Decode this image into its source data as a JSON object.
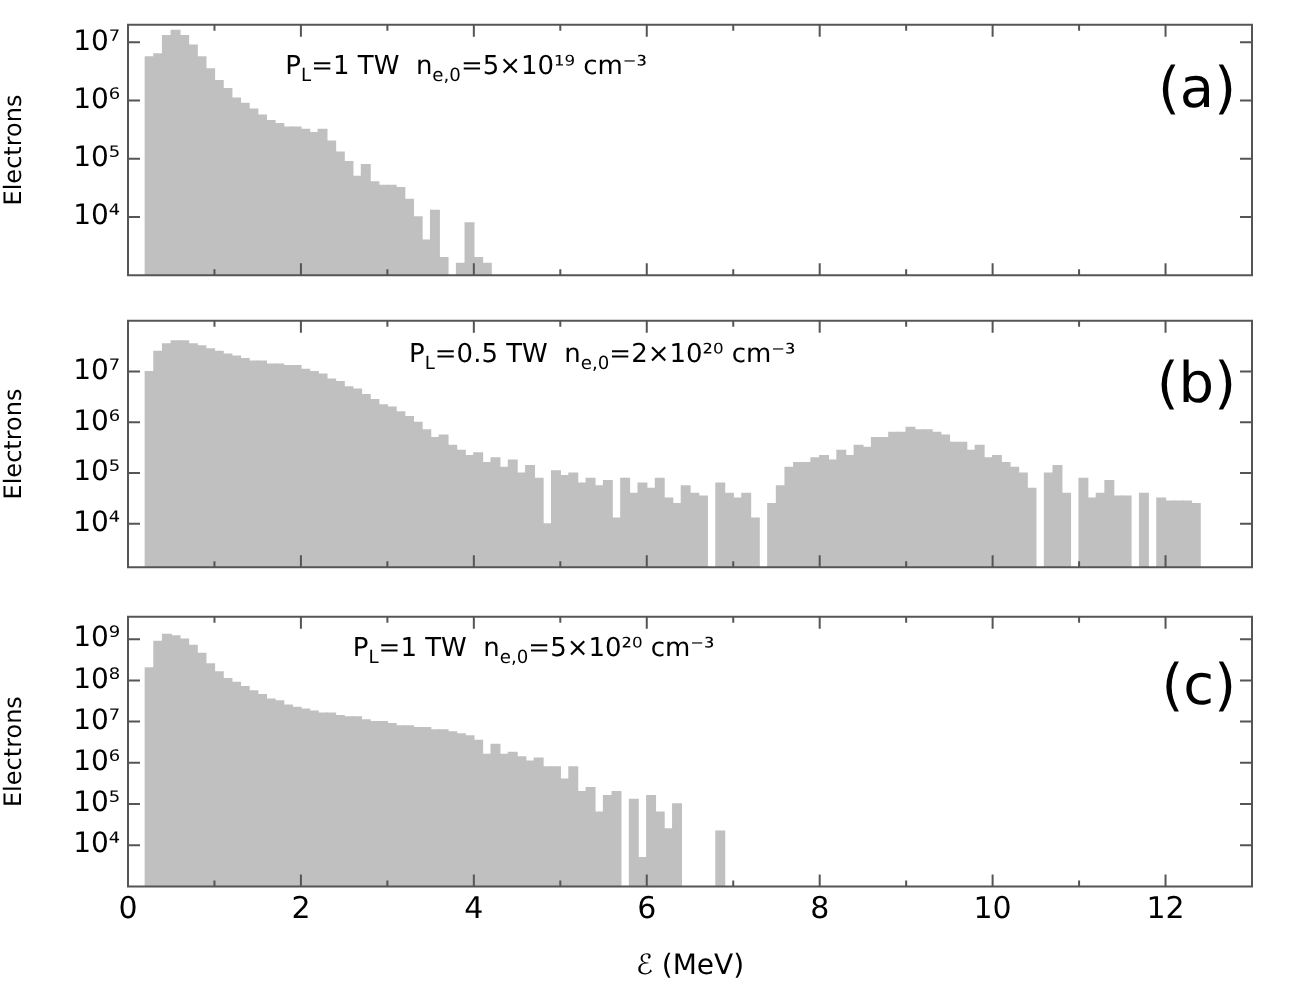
{
  "chart_data": [
    {
      "type": "histogram",
      "ylabel": "Electrons",
      "color": "#c0c0c0",
      "log": true,
      "tick_labels": "y",
      "annotations": [
        "P$_{L}$=1 TW  n$_{e,0}$=5×10¹⁹ cm⁻³",
        "(a)"
      ],
      "xlim": [
        0,
        13
      ],
      "xticks": [
        0,
        {
          "value": 1,
          "label": null
        },
        2,
        {
          "value": 3,
          "label": null
        },
        4,
        {
          "value": 5,
          "label": null
        },
        6,
        {
          "value": 7,
          "label": null
        },
        8,
        {
          "value": 9,
          "label": null
        },
        10,
        {
          "value": 11,
          "label": null
        },
        12
      ],
      "ylim": [
        1000,
        20000000
      ],
      "yticks": [
        {
          "value": 10000,
          "label": "10⁴"
        },
        {
          "value": 100000,
          "label": "10⁵"
        },
        {
          "value": 1000000,
          "label": "10⁶"
        },
        {
          "value": 10000000,
          "label": "10⁷"
        }
      ],
      "bins": [
        0.2,
        0.3,
        0.4,
        0.5,
        0.6,
        0.7,
        0.8,
        0.9,
        1.0,
        1.1,
        1.2,
        1.3,
        1.4,
        1.5,
        1.6,
        1.7,
        1.8,
        1.9,
        2.0,
        2.1,
        2.2,
        2.3,
        2.4,
        2.5,
        2.6,
        2.7,
        2.8,
        2.9,
        3.0,
        3.1,
        3.2,
        3.3,
        3.4,
        3.5,
        3.6,
        3.7,
        3.8,
        3.9,
        4.0,
        4.1,
        4.2
      ],
      "values": [
        5600000.0,
        6300000.0,
        13000000.0,
        16000000.0,
        13000000.0,
        8900000.0,
        5600000.0,
        3500000.0,
        2200000.0,
        1600000.0,
        1100000.0,
        890000.0,
        710000.0,
        560000.0,
        450000.0,
        400000.0,
        350000.0,
        350000.0,
        320000.0,
        280000.0,
        320000.0,
        200000.0,
        130000.0,
        89000.0,
        50000.0,
        79000.0,
        40000.0,
        35000.0,
        35000.0,
        32000.0,
        20000.0,
        10000.0,
        4000.0,
        13000.0,
        2000.0,
        null,
        1600.0,
        7900.0,
        2000.0,
        1600.0
      ]
    },
    {
      "type": "histogram",
      "ylabel": "Electrons",
      "color": "#c0c0c0",
      "log": true,
      "tick_labels": "y",
      "annotations": [
        "P$_{L}$=0.5 TW  n$_{e,0}$=2×10²⁰ cm⁻³",
        "(b)"
      ],
      "xlim": [
        0,
        13
      ],
      "xticks": [
        0,
        {
          "value": 1,
          "label": null
        },
        2,
        {
          "value": 3,
          "label": null
        },
        4,
        {
          "value": 5,
          "label": null
        },
        6,
        {
          "value": 7,
          "label": null
        },
        8,
        {
          "value": 9,
          "label": null
        },
        10,
        {
          "value": 11,
          "label": null
        },
        12
      ],
      "ylim": [
        1400,
        100000000
      ],
      "yticks": [
        {
          "value": 10000,
          "label": "10⁴"
        },
        {
          "value": 100000,
          "label": "10⁵"
        },
        {
          "value": 1000000,
          "label": "10⁶"
        },
        {
          "value": 10000000,
          "label": "10⁷"
        }
      ],
      "bins": [
        0.2,
        0.3,
        0.4,
        0.5,
        0.6,
        0.7,
        0.8,
        0.9,
        1.0,
        1.1,
        1.2,
        1.3,
        1.4,
        1.5,
        1.6,
        1.7,
        1.8,
        1.9,
        2.0,
        2.1,
        2.2,
        2.3,
        2.4,
        2.5,
        2.6,
        2.7,
        2.8,
        2.9,
        3.0,
        3.1,
        3.2,
        3.3,
        3.4,
        3.5,
        3.6,
        3.7,
        3.8,
        3.9,
        4.0,
        4.1,
        4.2,
        4.3,
        4.4,
        4.5,
        4.6,
        4.7,
        4.8,
        4.9,
        5.0,
        5.1,
        5.2,
        5.3,
        5.4,
        5.5,
        5.6,
        5.7,
        5.8,
        5.9,
        6.0,
        6.1,
        6.2,
        6.3,
        6.4,
        6.5,
        6.6,
        6.7,
        6.8,
        6.9,
        7.0,
        7.1,
        7.2,
        7.3,
        7.4,
        7.5,
        7.6,
        7.7,
        7.8,
        7.9,
        8.0,
        8.1,
        8.2,
        8.3,
        8.4,
        8.5,
        8.6,
        8.7,
        8.8,
        8.9,
        9.0,
        9.1,
        9.2,
        9.3,
        9.4,
        9.5,
        9.6,
        9.7,
        9.8,
        9.9,
        10.0,
        10.1,
        10.2,
        10.3,
        10.4,
        10.5,
        10.6,
        10.7,
        10.8,
        10.9,
        11.0,
        11.1,
        11.2,
        11.3,
        11.4,
        11.5,
        11.6,
        11.7,
        11.8,
        11.9,
        12.0,
        12.1,
        12.2,
        12.3,
        12.4
      ],
      "values": [
        10000000.0,
        25000000.0,
        35000000.0,
        40000000.0,
        40000000.0,
        35000000.0,
        32000000.0,
        28000000.0,
        25000000.0,
        22000000.0,
        20000000.0,
        18000000.0,
        16000000.0,
        16000000.0,
        14000000.0,
        14000000.0,
        13000000.0,
        13000000.0,
        11000000.0,
        10000000.0,
        8900000.0,
        7100000.0,
        6300000.0,
        5000000.0,
        4500000.0,
        3500000.0,
        2800000.0,
        2200000.0,
        2000000.0,
        1600000.0,
        1300000.0,
        1000000.0,
        710000.0,
        500000.0,
        560000.0,
        350000.0,
        280000.0,
        220000.0,
        250000.0,
        160000.0,
        200000.0,
        130000.0,
        180000.0,
        100000.0,
        140000.0,
        79000.0,
        10000.0,
        110000.0,
        89000.0,
        100000.0,
        63000.0,
        79000.0,
        56000.0,
        71000.0,
        13000.0,
        79000.0,
        40000.0,
        63000.0,
        50000.0,
        79000.0,
        32000.0,
        25000.0,
        56000.0,
        40000.0,
        35000.0,
        null,
        63000.0,
        40000.0,
        32000.0,
        40000.0,
        13000.0,
        null,
        25000.0,
        56000.0,
        130000.0,
        160000.0,
        160000.0,
        200000.0,
        220000.0,
        180000.0,
        280000.0,
        220000.0,
        350000.0,
        320000.0,
        500000.0,
        500000.0,
        630000.0,
        630000.0,
        790000.0,
        710000.0,
        710000.0,
        630000.0,
        560000.0,
        400000.0,
        400000.0,
        280000.0,
        350000.0,
        200000.0,
        220000.0,
        160000.0,
        130000.0,
        100000.0,
        50000.0,
        null,
        100000.0,
        140000.0,
        40000.0,
        null,
        79000.0,
        32000.0,
        40000.0,
        71000.0,
        35000.0,
        35000.0,
        null,
        40000.0,
        null,
        32000.0,
        28000.0,
        28000.0,
        28000.0,
        25000.0
      ]
    },
    {
      "type": "histogram",
      "ylabel": "Electrons",
      "xlabel": "ℰ (MeV)",
      "color": "#c0c0c0",
      "log": true,
      "annotations": [
        "P$_{L}$=1 TW  n$_{e,0}$=5×10²⁰ cm⁻³",
        "(c)"
      ],
      "xlim": [
        0,
        13
      ],
      "xticks": [
        0,
        {
          "value": 1,
          "label": null
        },
        2,
        {
          "value": 3,
          "label": null
        },
        4,
        {
          "value": 5,
          "label": null
        },
        6,
        {
          "value": 7,
          "label": null
        },
        8,
        {
          "value": 9,
          "label": null
        },
        10,
        {
          "value": 11,
          "label": null
        },
        12
      ],
      "ylim": [
        1000,
        3500000000
      ],
      "yticks": [
        {
          "value": 10000,
          "label": "10⁴"
        },
        {
          "value": 100000,
          "label": "10⁵"
        },
        {
          "value": 1000000,
          "label": "10⁶"
        },
        {
          "value": 10000000,
          "label": "10⁷"
        },
        {
          "value": 100000000,
          "label": "10⁸"
        },
        {
          "value": 1000000000,
          "label": "10⁹"
        }
      ],
      "bins": [
        0.2,
        0.3,
        0.4,
        0.5,
        0.6,
        0.7,
        0.8,
        0.9,
        1.0,
        1.1,
        1.2,
        1.3,
        1.4,
        1.5,
        1.6,
        1.7,
        1.8,
        1.9,
        2.0,
        2.1,
        2.2,
        2.3,
        2.4,
        2.5,
        2.6,
        2.7,
        2.8,
        2.9,
        3.0,
        3.1,
        3.2,
        3.3,
        3.4,
        3.5,
        3.6,
        3.7,
        3.8,
        3.9,
        4.0,
        4.1,
        4.2,
        4.3,
        4.4,
        4.5,
        4.6,
        4.7,
        4.8,
        4.9,
        5.0,
        5.1,
        5.2,
        5.3,
        5.4,
        5.5,
        5.6,
        5.7,
        5.8,
        5.9,
        6.0,
        6.1,
        6.2,
        6.3,
        6.4,
        6.5,
        6.6,
        6.7,
        6.8,
        6.9
      ],
      "values": [
        200000000.0,
        890000000.0,
        1300000000.0,
        1200000000.0,
        1000000000.0,
        710000000.0,
        450000000.0,
        250000000.0,
        160000000.0,
        110000000.0,
        89000000.0,
        71000000.0,
        56000000.0,
        45000000.0,
        35000000.0,
        32000000.0,
        25000000.0,
        22000000.0,
        20000000.0,
        18000000.0,
        16000000.0,
        16000000.0,
        14000000.0,
        13000000.0,
        13000000.0,
        11000000.0,
        10000000.0,
        10000000.0,
        8900000.0,
        7900000.0,
        7900000.0,
        7100000.0,
        7100000.0,
        6300000.0,
        6300000.0,
        5600000.0,
        5000000.0,
        4500000.0,
        3500000.0,
        1600000.0,
        2800000.0,
        1600000.0,
        1800000.0,
        1400000.0,
        1100000.0,
        1300000.0,
        790000.0,
        790000.0,
        400000.0,
        790000.0,
        200000.0,
        250000.0,
        63000.0,
        160000.0,
        200000.0,
        null,
        130000.0,
        5000.0,
        160000.0,
        63000.0,
        25000.0,
        100000.0,
        null,
        null,
        null,
        null,
        22000.0
      ]
    }
  ]
}
